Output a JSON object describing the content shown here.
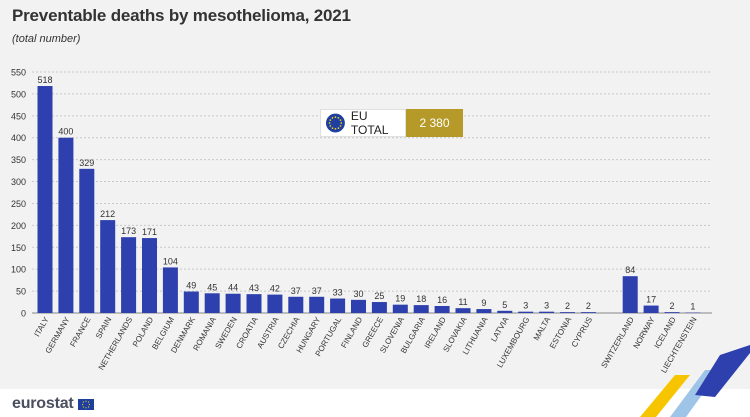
{
  "header": {
    "title": "Preventable deaths by mesothelioma, 2021",
    "subtitle": "(total number)"
  },
  "eu_total": {
    "label": "EU TOTAL",
    "value": "2 380"
  },
  "footer": {
    "logo_text": "eurostat"
  },
  "colors": {
    "bar": "#2e3fae",
    "grid": "#c8c8c8",
    "text": "#333333",
    "gold": "#b59a2a",
    "background": "#f2f2f2"
  },
  "chart_data": {
    "type": "bar",
    "title": "Preventable deaths by mesothelioma, 2021",
    "subtitle": "(total number)",
    "xlabel": "",
    "ylabel": "",
    "ylim": [
      0,
      550
    ],
    "yticks": [
      0,
      50,
      100,
      150,
      200,
      250,
      300,
      350,
      400,
      450,
      500,
      550
    ],
    "grid": true,
    "groups": [
      {
        "categories": [
          "ITALY",
          "GERMANY",
          "FRANCE",
          "SPAIN",
          "NETHERLANDS",
          "POLAND",
          "BELGIUM",
          "DENMARK",
          "ROMANIA",
          "SWEDEN",
          "CROATIA",
          "AUSTRIA",
          "CZECHIA",
          "HUNGARY",
          "PORTUGAL",
          "FINLAND",
          "GREECE",
          "SLOVENIA",
          "BULGARIA",
          "IRELAND",
          "SLOVAKIA",
          "LITHUANIA",
          "LATVIA",
          "LUXEMBOURG",
          "MALTA",
          "ESTONIA",
          "CYPRUS"
        ],
        "values": [
          518,
          400,
          329,
          212,
          173,
          171,
          104,
          49,
          45,
          44,
          43,
          42,
          37,
          37,
          33,
          30,
          25,
          19,
          18,
          16,
          11,
          9,
          5,
          3,
          3,
          2,
          2
        ]
      },
      {
        "categories": [
          "SWITZERLAND",
          "NORWAY",
          "ICELAND",
          "LIECHTENSTEIN"
        ],
        "values": [
          84,
          17,
          2,
          1
        ]
      }
    ]
  }
}
